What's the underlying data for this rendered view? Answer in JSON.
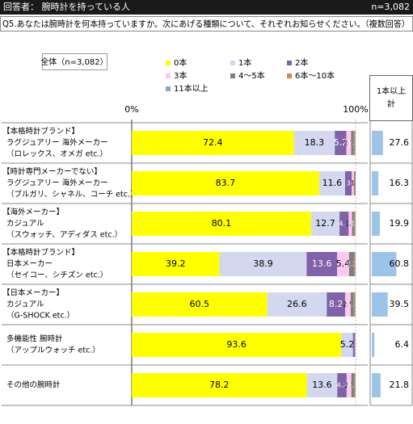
{
  "chart_data": {
    "type": "stacked-bar",
    "header_left": "回答者： 腕時計を持っている人",
    "header_right": "n=3,082",
    "question": "Q5.あなたは腕時計を何本持っていますか。次にあげる種類について、それぞれお知らせください。（複数回答）",
    "subtitle": "全体（n=3,082）",
    "categories": [
      [
        "【本格時計ブランド】",
        "ラグジュアリー 海外メーカー",
        "（ロレックス、オメガ etc.）"
      ],
      [
        "【時計専門メーカーでない】",
        "ラグジュアリー 海外メーカー",
        "（ブルガリ、シャネル、コーチ etc.）"
      ],
      [
        "【海外メーカー】",
        "カジュアル",
        "（スウォッチ、アディダス etc.）"
      ],
      [
        "【本格時計ブランド】",
        "日本メーカー",
        "（セイコー、シチズン etc.）"
      ],
      [
        "【日本メーカー】",
        "カジュアル",
        "（G-SHOCK etc.）"
      ],
      [
        "多機能性 腕時計",
        "（アップルウォッチ etc.）"
      ],
      [
        "その他の腕時計"
      ]
    ],
    "series": [
      {
        "name": "0本",
        "color": "#ffff00",
        "values": [
          72.4,
          83.7,
          80.1,
          39.2,
          60.5,
          93.6,
          78.2
        ]
      },
      {
        "name": "1本",
        "color": "#d3d8f0",
        "values": [
          18.3,
          11.6,
          12.7,
          38.9,
          26.6,
          5.2,
          13.6
        ]
      },
      {
        "name": "2本",
        "color": "#7f62a8",
        "values": [
          5.2,
          3.0,
          4.1,
          13.6,
          8.2,
          0.8,
          4.2
        ]
      },
      {
        "name": "3本",
        "color": "#ffc8ee",
        "values": [
          2.1,
          1.0,
          1.5,
          5.4,
          2.5,
          0.2,
          2.1
        ]
      },
      {
        "name": "4～5本",
        "color": "#7f7f7f",
        "values": [
          1.2,
          0.5,
          1.0,
          2.2,
          1.4,
          0.2,
          1.3
        ]
      },
      {
        "name": "6本～10本",
        "color": "#d2874b",
        "values": [
          0.5,
          0.2,
          0.4,
          0.5,
          0.5,
          0,
          0.4
        ]
      },
      {
        "name": "11本以上",
        "color": "#8fa6cc",
        "values": [
          0.3,
          0,
          0.2,
          0.2,
          0.3,
          0,
          0.2
        ]
      }
    ],
    "xlim": [
      0,
      100
    ],
    "xticks": [
      {
        "value": 0,
        "label": "0%"
      },
      {
        "value": 100,
        "label": "100%"
      }
    ],
    "totals": {
      "title": [
        "1本以上",
        "計"
      ],
      "color": "#9dc3e6",
      "values": [
        27.6,
        16.3,
        19.9,
        60.8,
        39.5,
        6.4,
        21.8
      ]
    }
  }
}
